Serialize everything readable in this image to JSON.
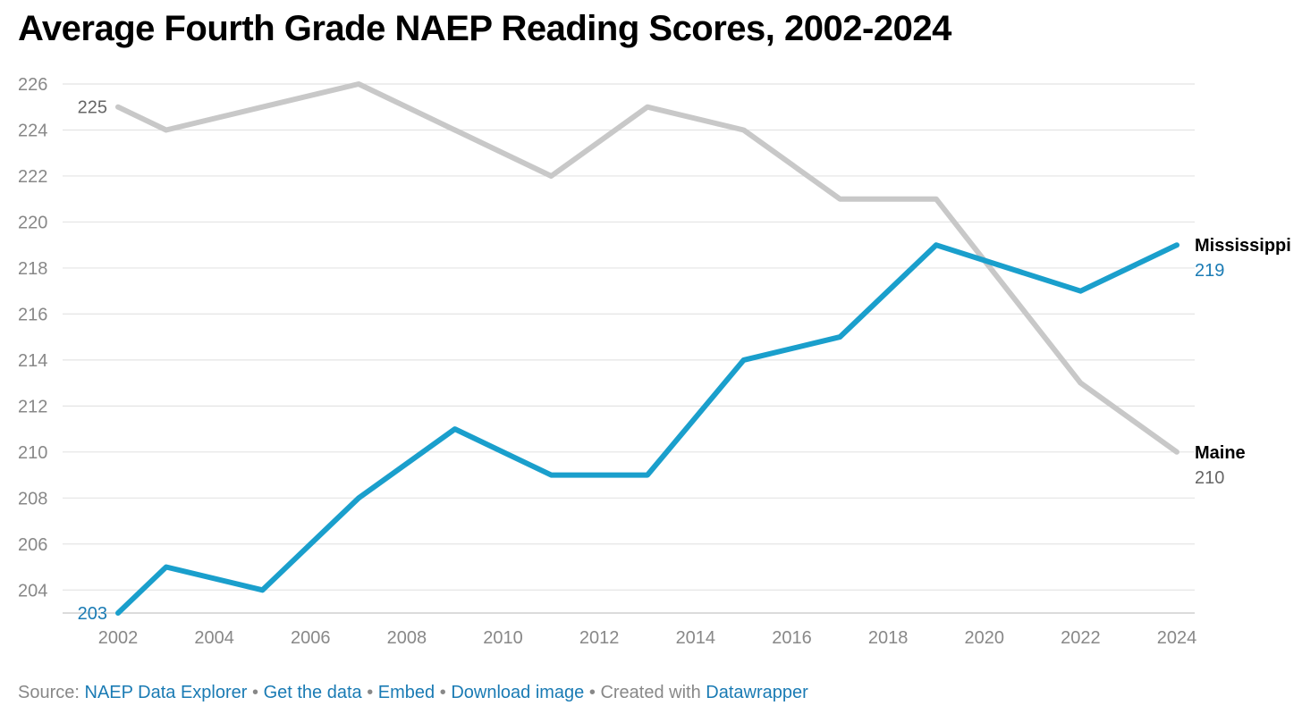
{
  "chart_data": {
    "type": "line",
    "title": "Average Fourth Grade NAEP Reading Scores, 2002-2024",
    "xlabel": "",
    "ylabel": "",
    "xlim": [
      2002,
      2024
    ],
    "ylim": [
      203,
      226
    ],
    "x_ticks": [
      2002,
      2004,
      2006,
      2008,
      2010,
      2012,
      2014,
      2016,
      2018,
      2020,
      2022,
      2024
    ],
    "y_ticks": [
      204,
      206,
      208,
      210,
      212,
      214,
      216,
      218,
      220,
      222,
      224,
      226
    ],
    "grid": true,
    "series": [
      {
        "name": "Maine",
        "color": "#c8c8c8",
        "label_color": "#666666",
        "x": [
          2002,
          2003,
          2005,
          2007,
          2009,
          2011,
          2013,
          2015,
          2017,
          2019,
          2022,
          2024
        ],
        "values": [
          225,
          224,
          225,
          226,
          224,
          222,
          225,
          224,
          221,
          221,
          213,
          210
        ],
        "start_label": "225",
        "end_label": "210"
      },
      {
        "name": "Mississippi",
        "color": "#1a9fcc",
        "label_color": "#1a7bb4",
        "x": [
          2002,
          2003,
          2005,
          2007,
          2009,
          2011,
          2013,
          2015,
          2017,
          2019,
          2022,
          2024
        ],
        "values": [
          203,
          205,
          204,
          208,
          211,
          209,
          209,
          214,
          215,
          219,
          217,
          219
        ],
        "start_label": "203",
        "end_label": "219"
      }
    ]
  },
  "footer": {
    "source_label": "Source:",
    "source_link": "NAEP Data Explorer",
    "get_data": "Get the data",
    "embed": "Embed",
    "download": "Download image",
    "created_with": "Created with",
    "datawrapper": "Datawrapper",
    "separator": "•"
  }
}
